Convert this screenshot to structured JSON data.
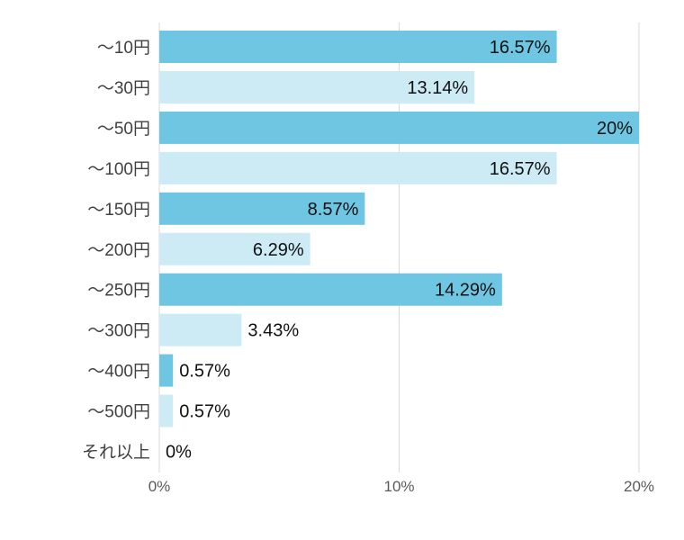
{
  "chart_data": {
    "type": "bar",
    "orientation": "horizontal",
    "categories": [
      "～10円",
      "～30円",
      "～50円",
      "～100円",
      "～150円",
      "～200円",
      "～250円",
      "～300円",
      "～400円",
      "～500円",
      "それ以上"
    ],
    "values": [
      16.57,
      13.14,
      20,
      16.57,
      8.57,
      6.29,
      14.29,
      3.43,
      0.57,
      0.57,
      0
    ],
    "data_labels": [
      "16.57%",
      "13.14%",
      "20%",
      "16.57%",
      "8.57%",
      "6.29%",
      "14.29%",
      "3.43%",
      "0.57%",
      "0.57%",
      "0%"
    ],
    "xlim": [
      0,
      20
    ],
    "x_ticks": [
      0,
      10,
      20
    ],
    "x_tick_labels": [
      "0%",
      "10%",
      "20%"
    ],
    "grid": true,
    "colors": [
      "#6ec6e2",
      "#cdebf5"
    ],
    "title": "",
    "xlabel": "",
    "ylabel": ""
  }
}
